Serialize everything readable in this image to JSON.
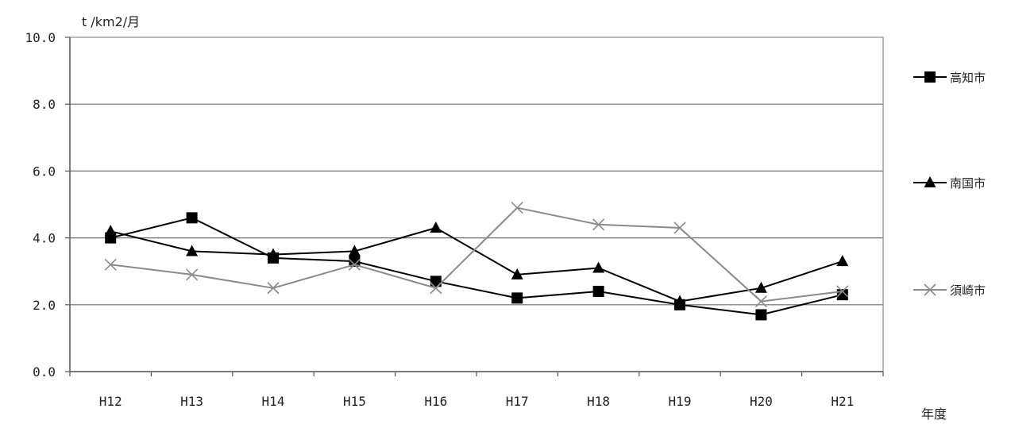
{
  "chart_data": {
    "type": "line",
    "ylabel": "t /km2/月",
    "xlabel": "年度",
    "categories": [
      "H12",
      "H13",
      "H14",
      "H15",
      "H16",
      "H17",
      "H18",
      "H19",
      "H20",
      "H21"
    ],
    "yticks": [
      "0.0",
      "2.0",
      "4.0",
      "6.0",
      "8.0",
      "10.0"
    ],
    "ylim": [
      0,
      10
    ],
    "grid": true,
    "legend": "right",
    "series": [
      {
        "name": "高知市",
        "marker": "square",
        "color": "#000000",
        "values": [
          4.0,
          4.6,
          3.4,
          3.3,
          2.7,
          2.2,
          2.4,
          2.0,
          1.7,
          2.3
        ]
      },
      {
        "name": "南国市",
        "marker": "triangle",
        "color": "#000000",
        "values": [
          4.2,
          3.6,
          3.5,
          3.6,
          4.3,
          2.9,
          3.1,
          2.1,
          2.5,
          3.3
        ]
      },
      {
        "name": "須崎市",
        "marker": "cross",
        "color": "#8a8a8a",
        "values": [
          3.2,
          2.9,
          2.5,
          3.2,
          2.5,
          4.9,
          4.4,
          4.3,
          2.1,
          2.4
        ]
      }
    ]
  }
}
